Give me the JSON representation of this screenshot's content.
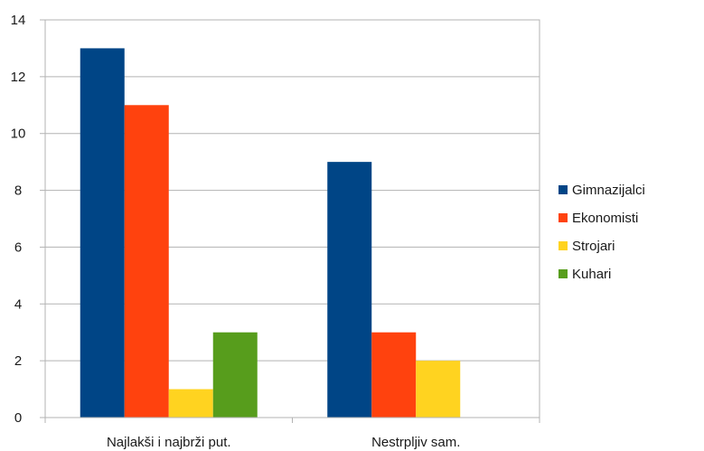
{
  "chart_data": {
    "type": "bar",
    "categories": [
      "Najlakši i najbrži put.",
      "Nestrpljiv sam."
    ],
    "series": [
      {
        "name": "Gimnazijalci",
        "values": [
          13,
          9
        ],
        "color": "#004586"
      },
      {
        "name": "Ekonomisti",
        "values": [
          11,
          3
        ],
        "color": "#ff420e"
      },
      {
        "name": "Strojari",
        "values": [
          1,
          2
        ],
        "color": "#ffd320"
      },
      {
        "name": "Kuhari",
        "values": [
          3,
          0
        ],
        "color": "#579d1c"
      }
    ],
    "ylim": [
      0,
      14
    ],
    "yticks": [
      0,
      2,
      4,
      6,
      8,
      10,
      12,
      14
    ],
    "grid": true,
    "legend": "right",
    "title": "",
    "xlabel": "",
    "ylabel": ""
  }
}
